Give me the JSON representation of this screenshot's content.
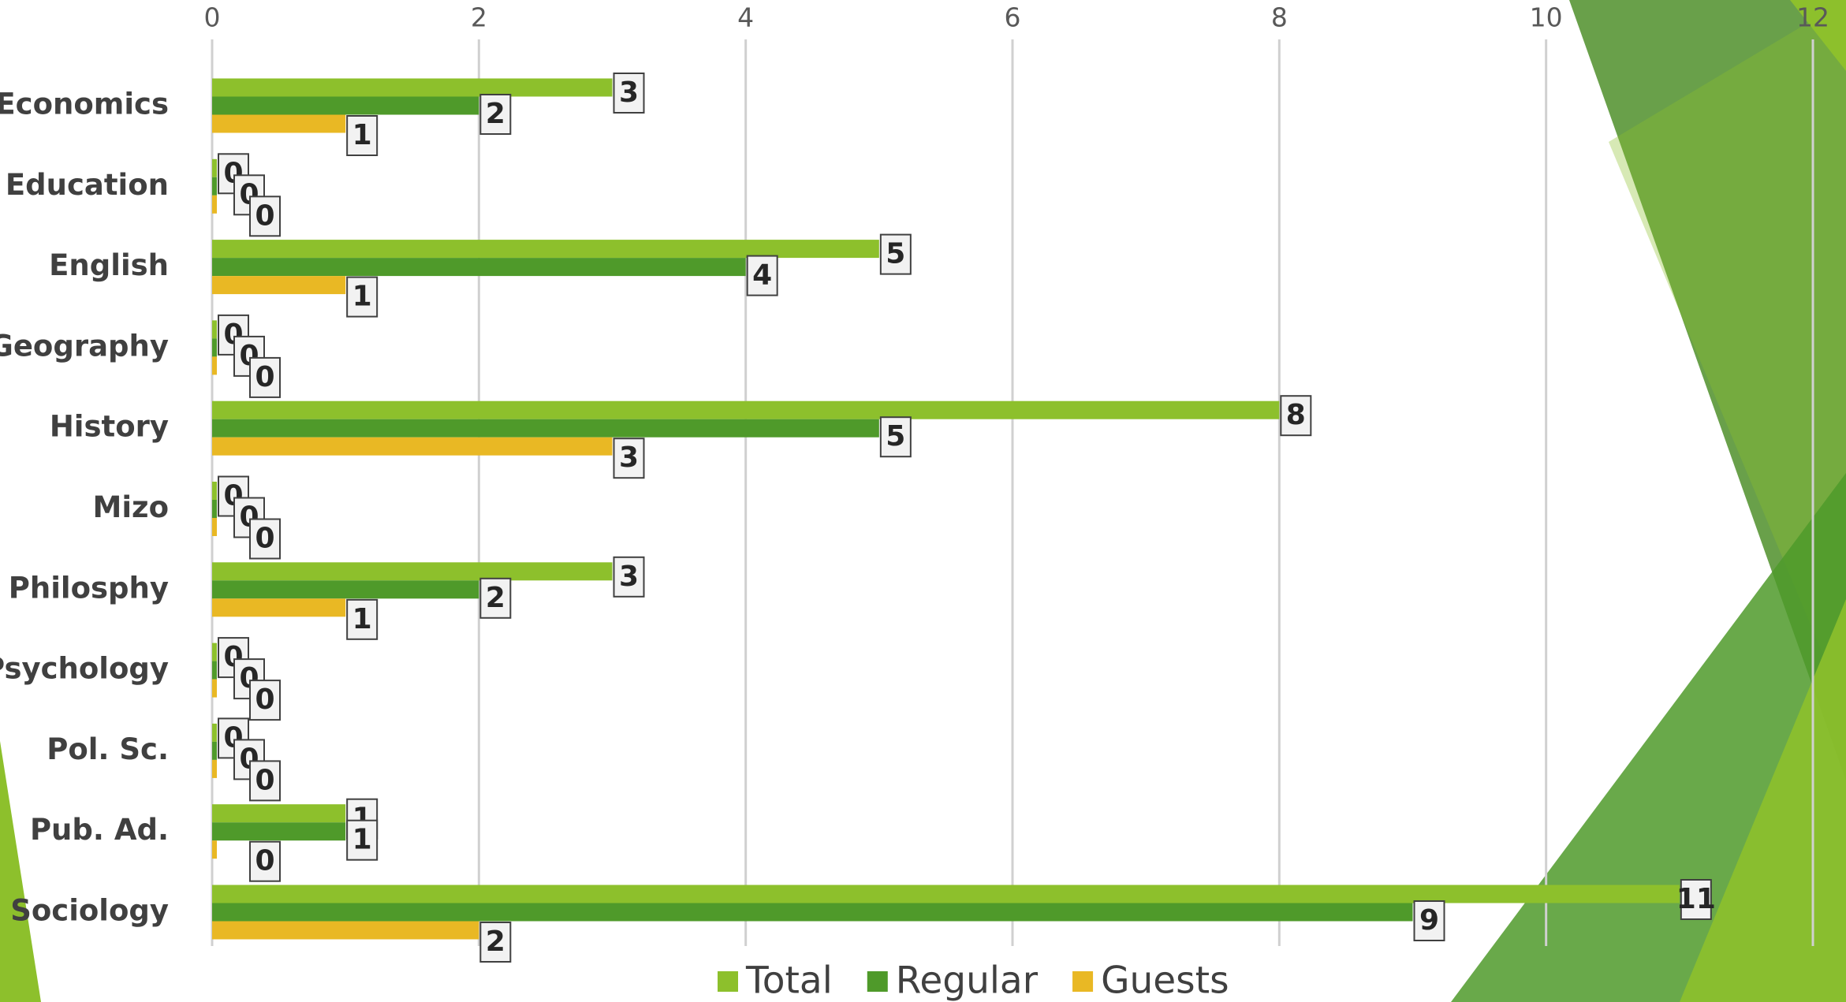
{
  "chart_data": {
    "type": "bar",
    "orientation": "horizontal",
    "categories": [
      "Economics",
      "Education",
      "English",
      "Geography",
      "History",
      "Mizo",
      "Philosphy",
      "Psychology",
      "Pol. Sc.",
      "Pub. Ad.",
      "Sociology"
    ],
    "series": [
      {
        "name": "Total",
        "color": "#8dc02c",
        "values": [
          3,
          0,
          5,
          0,
          8,
          0,
          3,
          0,
          0,
          1,
          11
        ]
      },
      {
        "name": "Regular",
        "color": "#4f9a2a",
        "values": [
          2,
          0,
          4,
          0,
          5,
          0,
          2,
          0,
          0,
          1,
          9
        ]
      },
      {
        "name": "Guests",
        "color": "#e9b824",
        "values": [
          1,
          0,
          1,
          0,
          3,
          0,
          1,
          0,
          0,
          0,
          2
        ]
      }
    ],
    "xlim": [
      0,
      12
    ],
    "xticks": [
      0,
      2,
      4,
      6,
      8,
      10,
      12
    ],
    "grid": true,
    "legend": "bottom"
  }
}
